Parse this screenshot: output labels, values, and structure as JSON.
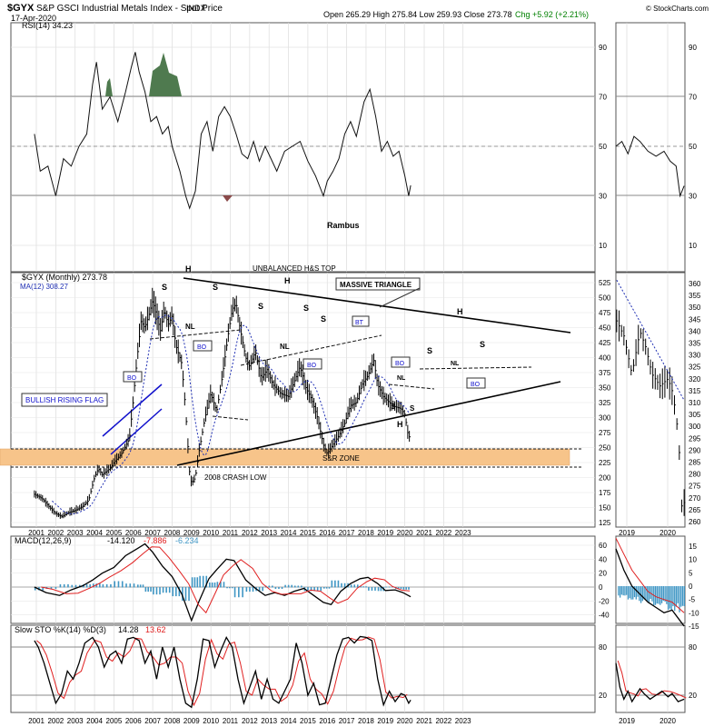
{
  "header": {
    "symbol": "$GYX",
    "title": "S&P GSCI Industrial Metals Index - Spot Price",
    "exchange": "INDX",
    "date": "17-Apr-2020",
    "ohlc": "Open 265.29  High 275.84  Low 259.93  Close 273.78",
    "change": "Chg +5.92 (+2.21%)",
    "copyright": "© StockCharts.com"
  },
  "colors": {
    "grid": "#d4d4d4",
    "price": "#000000",
    "ma": "#1f2fb3",
    "rsi_fill": "#4f7a4f",
    "rsi_fill_low": "#8a4a4a",
    "signal": "#e02020",
    "hist": "#3f96c4",
    "sr_zone": "#f7c48a",
    "flag": "#1111cc",
    "change_color": "#008000"
  },
  "panels": {
    "rsi": {
      "label": "RSI(14) 34.23",
      "levels": [
        "90",
        "70",
        "50",
        "30",
        "10"
      ],
      "note": "Rambus"
    },
    "price": {
      "label": "$GYX (Monthly) 273.78",
      "ma_label": "MA(12) 308.27",
      "yticks": [
        "525",
        "500",
        "475",
        "450",
        "425",
        "400",
        "375",
        "350",
        "325",
        "300",
        "275",
        "250",
        "225",
        "200",
        "175",
        "150",
        "125"
      ],
      "right_yticks": [
        "360",
        "355",
        "350",
        "345",
        "340",
        "335",
        "330",
        "325",
        "320",
        "315",
        "310",
        "305",
        "300",
        "295",
        "290",
        "285",
        "280",
        "275",
        "270",
        "265",
        "260"
      ]
    },
    "macd": {
      "label": "MACD(12,26,9)",
      "v1": "-14.120",
      "v2": "-7.886",
      "v3": "-6.234",
      "yticks": [
        "60",
        "40",
        "20",
        "0",
        "-20",
        "-40"
      ],
      "right_yticks": [
        "15",
        "10",
        "5",
        "0",
        "-5",
        "-10",
        "-15"
      ]
    },
    "sto": {
      "label": "Slow STO %K(14) %D(3)",
      "k": "14.28",
      "d": "13.62",
      "yticks": [
        "80",
        "20"
      ]
    }
  },
  "xaxis": {
    "years": [
      "2001",
      "2002",
      "2003",
      "2004",
      "2005",
      "2006",
      "2007",
      "2008",
      "2009",
      "2010",
      "2011",
      "2012",
      "2013",
      "2014",
      "2015",
      "2016",
      "2017",
      "2018",
      "2019",
      "2020",
      "2021",
      "2022",
      "2023"
    ],
    "right_years": [
      "2019",
      "2020"
    ]
  },
  "annotations": {
    "unbalanced": "UNBALANCED H&S TOP",
    "massive_triangle": "MASSIVE TRIANGLE",
    "bullish_flag": "BULLISH RISING FLAG",
    "sr_zone": "S&R ZONE",
    "crash_low": "2008 CRASH LOW",
    "h": "H",
    "s": "S",
    "nl": "NL",
    "bo": "BO",
    "bt": "BT"
  },
  "chart_data": [
    {
      "type": "line",
      "series": [
        {
          "x": [
            "2001",
            "2002",
            "2003",
            "2004",
            "2005",
            "2006",
            "2007",
            "2008",
            "2009",
            "2010",
            "2011",
            "2012",
            "2013",
            "2014",
            "2015",
            "2016",
            "2017",
            "2018",
            "2019",
            "2020"
          ],
          "values": [
            55,
            40,
            45,
            75,
            60,
            55,
            75,
            45,
            30,
            60,
            50,
            55,
            45,
            50,
            35,
            40,
            60,
            55,
            45,
            34
          ]
        }
      ],
      "ylim": [
        0,
        100
      ]
    },
    {
      "type": "line",
      "series": [
        {
          "x": [
            "2000.9",
            "2001.5",
            "2002.0",
            "2002.5",
            "2003.0",
            "2003.5",
            "2004.0",
            "2004.5",
            "2005.0",
            "2005.5",
            "2006.0",
            "2006.3",
            "2006.6",
            "2007.0",
            "2007.3",
            "2007.6",
            "2008.0",
            "2008.3",
            "2008.6",
            "2008.9",
            "2009.2",
            "2009.5",
            "2010.0",
            "2010.5",
            "2011.0",
            "2011.2",
            "2011.6",
            "2012.0",
            "2012.5",
            "2013.0",
            "2013.5",
            "2014.0",
            "2014.5",
            "2015.0",
            "2015.4",
            "2015.8",
            "2016.0",
            "2016.5",
            "2017.0",
            "2017.5",
            "2018.0",
            "2018.3",
            "2018.6",
            "2019.0",
            "2019.5",
            "2020.0",
            "2020.3"
          ],
          "values": [
            172,
            158,
            140,
            143,
            152,
            175,
            200,
            210,
            235,
            265,
            330,
            420,
            460,
            480,
            450,
            415,
            440,
            400,
            300,
            200,
            195,
            260,
            340,
            350,
            410,
            480,
            430,
            380,
            370,
            350,
            330,
            345,
            375,
            340,
            290,
            255,
            245,
            265,
            305,
            320,
            350,
            370,
            350,
            330,
            315,
            300,
            273.78
          ]
        }
      ],
      "ylim": [
        120,
        530
      ]
    }
  ]
}
